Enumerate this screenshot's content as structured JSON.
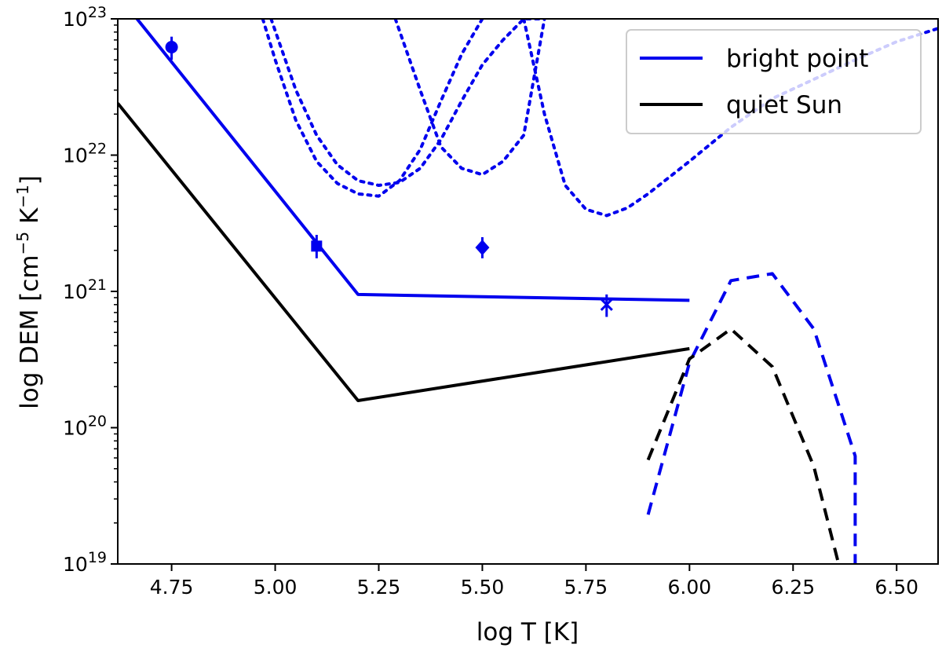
{
  "chart_data": {
    "type": "line",
    "xlabel": "log T [K]",
    "ylabel": "log DEM [cm^-5 K^-1]",
    "ylabel_parts": {
      "main": "log DEM [cm",
      "sup1": "−5",
      "mid": " K",
      "sup2": "−1",
      "end": "]"
    },
    "xlim": [
      4.62,
      6.6
    ],
    "ylim": [
      1e+19,
      1e+23
    ],
    "yscale": "log",
    "x_ticks": [
      4.75,
      5.0,
      5.25,
      5.5,
      5.75,
      6.0,
      6.25,
      6.5
    ],
    "x_tick_labels": [
      "4.75",
      "5.00",
      "5.25",
      "5.50",
      "5.75",
      "6.00",
      "6.25",
      "6.50"
    ],
    "y_ticks": [
      {
        "value": 1e+19,
        "base": "10",
        "exp": "19"
      },
      {
        "value": 1e+20,
        "base": "10",
        "exp": "20"
      },
      {
        "value": 1e+21,
        "base": "10",
        "exp": "21"
      },
      {
        "value": 1e+22,
        "base": "10",
        "exp": "22"
      },
      {
        "value": 1e+23,
        "base": "10",
        "exp": "23"
      }
    ],
    "legend": {
      "position": "top-right",
      "entries": [
        {
          "label": "bright point",
          "color": "#0000ee"
        },
        {
          "label": "quiet Sun",
          "color": "#000000"
        }
      ]
    },
    "series": [
      {
        "name": "bright point",
        "style": "solid",
        "color": "#0000ee",
        "x": [
          4.62,
          5.2,
          6.0
        ],
        "y": [
          1.5e+23,
          9.5e+20,
          8.6e+20
        ]
      },
      {
        "name": "quiet Sun",
        "style": "solid",
        "color": "#000000",
        "x": [
          4.62,
          5.2,
          6.0
        ],
        "y": [
          2.4e+22,
          1.58e+20,
          3.8e+20
        ]
      },
      {
        "name": "bright point (dashed)",
        "style": "dashed",
        "color": "#0000ee",
        "x": [
          5.9,
          6.0,
          6.1,
          6.2,
          6.3,
          6.4,
          6.4
        ],
        "y": [
          2.3e+19,
          3e+20,
          1.2e+21,
          1.35e+21,
          5.3e+20,
          6.2e+19,
          1e+19
        ]
      },
      {
        "name": "quiet Sun (dashed)",
        "style": "dashed",
        "color": "#000000",
        "x": [
          5.9,
          6.0,
          6.1,
          6.2,
          6.3,
          6.36
        ],
        "y": [
          5.8e+19,
          3.2e+20,
          5.3e+20,
          2.8e+20,
          5.2e+19,
          1e+19
        ]
      },
      {
        "name": "loci curve 1",
        "style": "dotted",
        "color": "#0000ee",
        "x": [
          4.97,
          5.0,
          5.05,
          5.1,
          5.15,
          5.2,
          5.25,
          5.3,
          5.35,
          5.4,
          5.45,
          5.5
        ],
        "y": [
          1e+23,
          5e+22,
          1.8e+22,
          9e+21,
          6.2e+21,
          5.2e+21,
          5e+21,
          6.5e+21,
          1.1e+22,
          2.5e+22,
          5.5e+22,
          1e+23
        ]
      },
      {
        "name": "loci curve 2",
        "style": "dotted",
        "color": "#0000ee",
        "x": [
          4.99,
          5.05,
          5.1,
          5.15,
          5.2,
          5.25,
          5.3,
          5.35,
          5.4,
          5.45,
          5.5,
          5.55,
          5.6,
          5.65
        ],
        "y": [
          1e+23,
          3e+22,
          1.4e+22,
          8.5e+21,
          6.5e+21,
          6e+21,
          6.3e+21,
          8e+21,
          1.3e+22,
          2.5e+22,
          4.6e+22,
          7e+22,
          1e+23,
          1e+23
        ]
      },
      {
        "name": "loci curve 3",
        "style": "dotted",
        "color": "#0000ee",
        "x": [
          5.29,
          5.35,
          5.4,
          5.45,
          5.5,
          5.55,
          5.6,
          5.65
        ],
        "y": [
          1e+23,
          3e+22,
          1.15e+22,
          8e+21,
          7.2e+21,
          9e+21,
          1.4e+22,
          1e+23
        ]
      },
      {
        "name": "loci curve 4",
        "style": "dotted",
        "color": "#0000ee",
        "x": [
          5.6,
          5.65,
          5.7,
          5.75,
          5.8,
          5.85,
          5.9,
          6.0,
          6.1,
          6.2,
          6.3,
          6.4,
          6.5,
          6.6
        ],
        "y": [
          1e+23,
          2e+22,
          6e+21,
          4e+21,
          3.6e+21,
          4.1e+21,
          5.2e+21,
          9e+21,
          1.6e+22,
          2.6e+22,
          3.6e+22,
          5e+22,
          6.8e+22,
          8.5e+22
        ]
      }
    ],
    "markers": [
      {
        "x": 4.75,
        "y": 6.2e+22,
        "shape": "circle",
        "color": "#0000ee",
        "err_low": 5e+22,
        "err_high": 7.4e+22
      },
      {
        "x": 5.1,
        "y": 2.15e+21,
        "shape": "square",
        "color": "#0000ee",
        "err_low": 1.75e+21,
        "err_high": 2.6e+21
      },
      {
        "x": 5.5,
        "y": 2.1e+21,
        "shape": "diamond",
        "color": "#0000ee",
        "err_low": 1.75e+21,
        "err_high": 2.5e+21
      },
      {
        "x": 5.8,
        "y": 8e+20,
        "shape": "x",
        "color": "#0000ee",
        "err_low": 6.5e+20,
        "err_high": 9.5e+20
      }
    ]
  }
}
